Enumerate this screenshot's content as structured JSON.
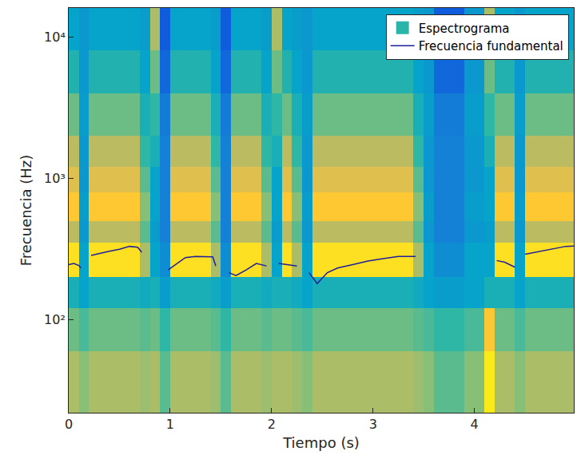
{
  "chart_data": {
    "type": "heatmap",
    "x_label": "Tiempo (s)",
    "y_label": "Frecuencia (Hz)",
    "xlim": [
      0,
      4.98
    ],
    "ylim": [
      22,
      16000
    ],
    "xticks": [
      0,
      1,
      2,
      3,
      4
    ],
    "yticks": [
      {
        "value": 100,
        "label": "10²"
      },
      {
        "value": 1000,
        "label": "10³"
      },
      {
        "value": 10000,
        "label": "10⁴"
      }
    ],
    "log": "y",
    "grid": false,
    "legend": "top right",
    "series": [
      {
        "name": "Espectrograma",
        "type": "heatmap",
        "color": "#2bb5a9",
        "zlim": [
          0,
          1
        ],
        "x_edges": [
          0,
          0.1,
          0.2,
          0.3,
          0.4,
          0.5,
          0.6,
          0.7,
          0.8,
          0.9,
          1.0,
          1.1,
          1.2,
          1.3,
          1.4,
          1.5,
          1.6,
          1.7,
          1.8,
          1.9,
          2.0,
          2.1,
          2.2,
          2.3,
          2.4,
          2.5,
          2.6,
          2.7,
          2.8,
          2.9,
          3.0,
          3.1,
          3.2,
          3.3,
          3.4,
          3.5,
          3.6,
          3.7,
          3.8,
          3.9,
          4.0,
          4.1,
          4.2,
          4.3,
          4.4,
          4.5,
          4.6,
          4.7,
          4.8,
          4.9,
          5.0
        ],
        "y_edges": [
          22,
          60,
          120,
          200,
          350,
          500,
          800,
          1200,
          2000,
          4000,
          8000,
          16000
        ],
        "cells": [
          [
            0.7,
            0.65,
            0.7,
            0.7,
            0.7,
            0.7,
            0.7,
            0.68,
            0.7,
            0.6,
            0.7,
            0.7,
            0.7,
            0.7,
            0.68,
            0.6,
            0.7,
            0.7,
            0.7,
            0.68,
            0.7,
            0.7,
            0.68,
            0.65,
            0.7,
            0.7,
            0.7,
            0.7,
            0.7,
            0.7,
            0.7,
            0.7,
            0.7,
            0.7,
            0.68,
            0.65,
            0.6,
            0.6,
            0.6,
            0.65,
            0.65,
            0.95,
            0.7,
            0.7,
            0.65,
            0.7,
            0.7,
            0.7,
            0.7,
            0.7
          ],
          [
            0.62,
            0.58,
            0.62,
            0.62,
            0.62,
            0.62,
            0.62,
            0.6,
            0.62,
            0.55,
            0.62,
            0.62,
            0.62,
            0.62,
            0.6,
            0.55,
            0.62,
            0.62,
            0.62,
            0.6,
            0.62,
            0.62,
            0.6,
            0.58,
            0.62,
            0.62,
            0.62,
            0.62,
            0.62,
            0.62,
            0.62,
            0.62,
            0.62,
            0.62,
            0.6,
            0.58,
            0.55,
            0.55,
            0.55,
            0.58,
            0.58,
            0.85,
            0.62,
            0.62,
            0.58,
            0.62,
            0.62,
            0.62,
            0.62,
            0.62
          ],
          [
            0.5,
            0.45,
            0.5,
            0.5,
            0.5,
            0.5,
            0.5,
            0.48,
            0.5,
            0.42,
            0.5,
            0.5,
            0.5,
            0.5,
            0.48,
            0.42,
            0.5,
            0.5,
            0.5,
            0.48,
            0.5,
            0.5,
            0.48,
            0.45,
            0.5,
            0.5,
            0.5,
            0.5,
            0.5,
            0.5,
            0.5,
            0.5,
            0.5,
            0.5,
            0.48,
            0.45,
            0.42,
            0.42,
            0.42,
            0.45,
            0.45,
            0.5,
            0.5,
            0.5,
            0.45,
            0.5,
            0.5,
            0.5,
            0.5,
            0.5
          ],
          [
            0.92,
            0.45,
            0.92,
            0.92,
            0.92,
            0.92,
            0.92,
            0.7,
            0.45,
            0.35,
            0.92,
            0.92,
            0.92,
            0.92,
            0.7,
            0.35,
            0.92,
            0.92,
            0.92,
            0.7,
            0.45,
            0.92,
            0.7,
            0.45,
            0.92,
            0.92,
            0.92,
            0.92,
            0.92,
            0.92,
            0.92,
            0.92,
            0.92,
            0.92,
            0.7,
            0.45,
            0.35,
            0.35,
            0.35,
            0.45,
            0.45,
            0.45,
            0.92,
            0.92,
            0.45,
            0.92,
            0.92,
            0.92,
            0.92,
            0.92
          ],
          [
            0.72,
            0.4,
            0.72,
            0.72,
            0.72,
            0.72,
            0.72,
            0.6,
            0.42,
            0.3,
            0.72,
            0.72,
            0.72,
            0.72,
            0.6,
            0.3,
            0.72,
            0.72,
            0.72,
            0.6,
            0.42,
            0.72,
            0.6,
            0.4,
            0.72,
            0.72,
            0.72,
            0.72,
            0.72,
            0.72,
            0.72,
            0.72,
            0.72,
            0.72,
            0.6,
            0.4,
            0.3,
            0.3,
            0.3,
            0.4,
            0.4,
            0.42,
            0.72,
            0.72,
            0.4,
            0.72,
            0.72,
            0.72,
            0.72,
            0.72
          ],
          [
            0.85,
            0.42,
            0.85,
            0.85,
            0.85,
            0.85,
            0.85,
            0.65,
            0.45,
            0.3,
            0.85,
            0.85,
            0.85,
            0.85,
            0.65,
            0.3,
            0.85,
            0.85,
            0.85,
            0.65,
            0.45,
            0.85,
            0.65,
            0.42,
            0.85,
            0.85,
            0.85,
            0.85,
            0.85,
            0.85,
            0.85,
            0.85,
            0.85,
            0.85,
            0.65,
            0.42,
            0.3,
            0.3,
            0.3,
            0.42,
            0.42,
            0.45,
            0.85,
            0.85,
            0.42,
            0.85,
            0.85,
            0.85,
            0.85,
            0.85
          ],
          [
            0.78,
            0.4,
            0.78,
            0.78,
            0.78,
            0.78,
            0.78,
            0.6,
            0.45,
            0.3,
            0.78,
            0.78,
            0.78,
            0.78,
            0.6,
            0.3,
            0.78,
            0.78,
            0.78,
            0.6,
            0.45,
            0.78,
            0.6,
            0.4,
            0.78,
            0.78,
            0.78,
            0.78,
            0.78,
            0.78,
            0.78,
            0.78,
            0.78,
            0.78,
            0.6,
            0.4,
            0.3,
            0.3,
            0.3,
            0.4,
            0.4,
            0.45,
            0.78,
            0.78,
            0.4,
            0.78,
            0.78,
            0.78,
            0.78,
            0.78
          ],
          [
            0.72,
            0.4,
            0.72,
            0.72,
            0.72,
            0.72,
            0.72,
            0.55,
            0.5,
            0.3,
            0.72,
            0.72,
            0.72,
            0.72,
            0.55,
            0.3,
            0.72,
            0.72,
            0.72,
            0.55,
            0.5,
            0.72,
            0.55,
            0.4,
            0.72,
            0.72,
            0.72,
            0.72,
            0.72,
            0.72,
            0.72,
            0.72,
            0.72,
            0.72,
            0.55,
            0.4,
            0.3,
            0.3,
            0.3,
            0.4,
            0.4,
            0.5,
            0.72,
            0.72,
            0.4,
            0.72,
            0.72,
            0.72,
            0.72,
            0.72
          ],
          [
            0.62,
            0.42,
            0.62,
            0.62,
            0.62,
            0.62,
            0.62,
            0.5,
            0.55,
            0.28,
            0.62,
            0.62,
            0.62,
            0.62,
            0.5,
            0.28,
            0.62,
            0.62,
            0.62,
            0.5,
            0.55,
            0.62,
            0.5,
            0.42,
            0.62,
            0.62,
            0.62,
            0.62,
            0.62,
            0.62,
            0.62,
            0.62,
            0.62,
            0.62,
            0.5,
            0.42,
            0.28,
            0.28,
            0.28,
            0.42,
            0.42,
            0.55,
            0.62,
            0.62,
            0.42,
            0.62,
            0.62,
            0.62,
            0.62,
            0.62
          ],
          [
            0.52,
            0.4,
            0.52,
            0.52,
            0.52,
            0.52,
            0.52,
            0.45,
            0.62,
            0.2,
            0.52,
            0.52,
            0.52,
            0.52,
            0.45,
            0.2,
            0.52,
            0.52,
            0.52,
            0.45,
            0.62,
            0.52,
            0.45,
            0.4,
            0.52,
            0.52,
            0.52,
            0.52,
            0.52,
            0.52,
            0.52,
            0.52,
            0.52,
            0.52,
            0.45,
            0.4,
            0.2,
            0.2,
            0.2,
            0.4,
            0.4,
            0.62,
            0.52,
            0.52,
            0.4,
            0.52,
            0.52,
            0.52,
            0.52,
            0.52
          ],
          [
            0.45,
            0.4,
            0.45,
            0.45,
            0.45,
            0.45,
            0.45,
            0.42,
            0.7,
            0.15,
            0.45,
            0.45,
            0.45,
            0.45,
            0.42,
            0.15,
            0.45,
            0.45,
            0.45,
            0.42,
            0.7,
            0.45,
            0.42,
            0.4,
            0.45,
            0.45,
            0.45,
            0.45,
            0.45,
            0.45,
            0.45,
            0.45,
            0.45,
            0.45,
            0.42,
            0.4,
            0.15,
            0.15,
            0.15,
            0.4,
            0.4,
            0.7,
            0.45,
            0.45,
            0.4,
            0.45,
            0.45,
            0.45,
            0.45,
            0.45
          ]
        ]
      },
      {
        "name": "Frecuencia fundamental",
        "type": "line",
        "color": "#1f1f9e",
        "x": [
          0,
          0.05,
          0.1,
          0.12,
          0.16,
          0.22,
          0.3,
          0.4,
          0.5,
          0.6,
          0.68,
          0.72,
          0.85,
          0.98,
          1.05,
          1.15,
          1.25,
          1.35,
          1.42,
          1.45,
          1.5,
          1.58,
          1.65,
          1.75,
          1.85,
          1.95,
          2.0,
          2.07,
          2.15,
          2.25,
          2.3,
          2.37,
          2.45,
          2.55,
          2.65,
          2.8,
          2.95,
          3.1,
          3.25,
          3.42,
          3.8,
          4.22,
          4.3,
          4.4,
          4.45,
          4.5,
          4.6,
          4.7,
          4.8,
          4.9,
          4.98
        ],
        "values": [
          245,
          250,
          242,
          232,
          null,
          285,
          295,
          305,
          315,
          330,
          325,
          300,
          null,
          225,
          245,
          275,
          280,
          280,
          278,
          240,
          null,
          215,
          205,
          225,
          250,
          240,
          null,
          250,
          245,
          240,
          null,
          215,
          180,
          215,
          232,
          245,
          260,
          270,
          280,
          280,
          null,
          262,
          255,
          235,
          null,
          290,
          300,
          308,
          320,
          330,
          332
        ]
      }
    ]
  }
}
